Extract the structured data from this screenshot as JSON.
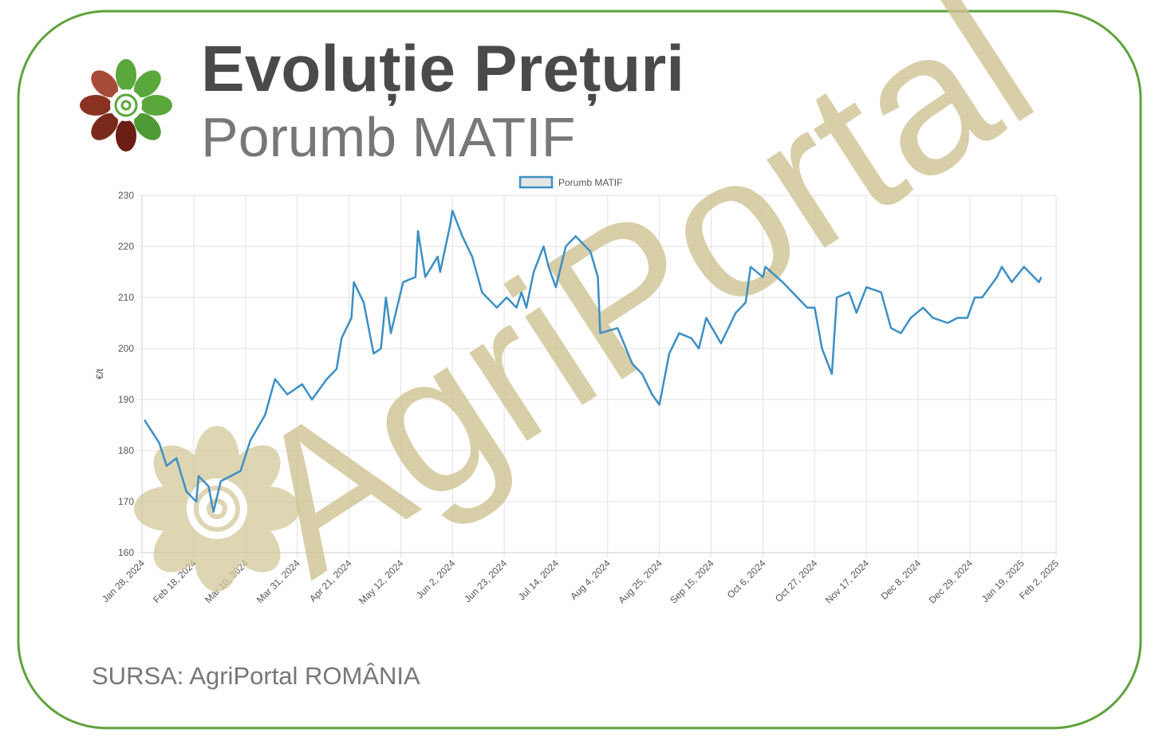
{
  "title": "Evoluție Prețuri",
  "subtitle": "Porumb MATIF",
  "source": "SURSA: AgriPortal ROMÂNIA",
  "watermark": "AgriPortal",
  "chart_data": {
    "type": "line",
    "y_label": "€/t",
    "grid": true,
    "xlim": [
      "2024-01-28",
      "2025-02-02"
    ],
    "ylim": [
      160,
      230
    ],
    "yticks": [
      160,
      170,
      180,
      190,
      200,
      210,
      220,
      230
    ],
    "xticks": [
      {
        "value": "2024-01-28",
        "label": "Jan 28, 2024"
      },
      {
        "value": "2024-02-18",
        "label": "Feb 18, 2024"
      },
      {
        "value": "2024-03-10",
        "label": "Mar 10, 2024"
      },
      {
        "value": "2024-03-31",
        "label": "Mar 31, 2024"
      },
      {
        "value": "2024-04-21",
        "label": "Apr 21, 2024"
      },
      {
        "value": "2024-05-12",
        "label": "May 12, 2024"
      },
      {
        "value": "2024-06-02",
        "label": "Jun 2, 2024"
      },
      {
        "value": "2024-06-23",
        "label": "Jun 23, 2024"
      },
      {
        "value": "2024-07-14",
        "label": "Jul 14, 2024"
      },
      {
        "value": "2024-08-04",
        "label": "Aug 4, 2024"
      },
      {
        "value": "2024-08-25",
        "label": "Aug 25, 2024"
      },
      {
        "value": "2024-09-15",
        "label": "Sep 15, 2024"
      },
      {
        "value": "2024-10-06",
        "label": "Oct 6, 2024"
      },
      {
        "value": "2024-10-27",
        "label": "Oct 27, 2024"
      },
      {
        "value": "2024-11-17",
        "label": "Nov 17, 2024"
      },
      {
        "value": "2024-12-08",
        "label": "Dec 8, 2024"
      },
      {
        "value": "2024-12-29",
        "label": "Dec 29, 2024"
      },
      {
        "value": "2025-01-19",
        "label": "Jan 19, 2025"
      },
      {
        "value": "2025-02-02",
        "label": "Feb 2, 2025"
      }
    ],
    "x": [
      "2024-01-29",
      "2024-02-04",
      "2024-02-07",
      "2024-02-11",
      "2024-02-15",
      "2024-02-19",
      "2024-02-20",
      "2024-02-24",
      "2024-02-26",
      "2024-02-29",
      "2024-03-04",
      "2024-03-08",
      "2024-03-12",
      "2024-03-18",
      "2024-03-22",
      "2024-03-27",
      "2024-04-02",
      "2024-04-06",
      "2024-04-12",
      "2024-04-16",
      "2024-04-18",
      "2024-04-22",
      "2024-04-23",
      "2024-04-27",
      "2024-05-01",
      "2024-05-04",
      "2024-05-06",
      "2024-05-08",
      "2024-05-13",
      "2024-05-18",
      "2024-05-19",
      "2024-05-22",
      "2024-05-27",
      "2024-05-28",
      "2024-06-01",
      "2024-06-02",
      "2024-06-06",
      "2024-06-10",
      "2024-06-14",
      "2024-06-20",
      "2024-06-24",
      "2024-06-28",
      "2024-06-30",
      "2024-07-02",
      "2024-07-05",
      "2024-07-09",
      "2024-07-11",
      "2024-07-14",
      "2024-07-18",
      "2024-07-22",
      "2024-07-28",
      "2024-07-31",
      "2024-08-01",
      "2024-08-08",
      "2024-08-14",
      "2024-08-18",
      "2024-08-22",
      "2024-08-25",
      "2024-08-29",
      "2024-09-02",
      "2024-09-07",
      "2024-09-10",
      "2024-09-13",
      "2024-09-19",
      "2024-09-25",
      "2024-09-29",
      "2024-10-01",
      "2024-10-06",
      "2024-10-07",
      "2024-10-14",
      "2024-10-20",
      "2024-10-24",
      "2024-10-27",
      "2024-10-30",
      "2024-11-03",
      "2024-11-05",
      "2024-11-10",
      "2024-11-13",
      "2024-11-17",
      "2024-11-23",
      "2024-11-27",
      "2024-12-01",
      "2024-12-05",
      "2024-12-10",
      "2024-12-14",
      "2024-12-20",
      "2024-12-24",
      "2024-12-28",
      "2024-12-31",
      "2025-01-03",
      "2025-01-09",
      "2025-01-11",
      "2025-01-15",
      "2025-01-20",
      "2025-01-24",
      "2025-01-26",
      "2025-01-27"
    ],
    "series": [
      {
        "name": "Porumb MATIF",
        "color": "#3d8fc4",
        "values": [
          186,
          181.5,
          177,
          178.5,
          172,
          170,
          175,
          173,
          168,
          174,
          175,
          176,
          182,
          187,
          194,
          191,
          193,
          190,
          194,
          196,
          202,
          206,
          213,
          209,
          199,
          200,
          210,
          203,
          213,
          214,
          223,
          214,
          218,
          215,
          224,
          227,
          222,
          218,
          211,
          208,
          210,
          208,
          211,
          208,
          215,
          220,
          216,
          212,
          220,
          222,
          219,
          214,
          203,
          204,
          197,
          195,
          191,
          189,
          199,
          203,
          202,
          200,
          206,
          201,
          207,
          209,
          216,
          214,
          216,
          213,
          210,
          208,
          208,
          200,
          195,
          210,
          211,
          207,
          212,
          211,
          204,
          203,
          206,
          208,
          206,
          205,
          206,
          206,
          210,
          210,
          214,
          216,
          213,
          216,
          214,
          213,
          214
        ]
      }
    ]
  }
}
